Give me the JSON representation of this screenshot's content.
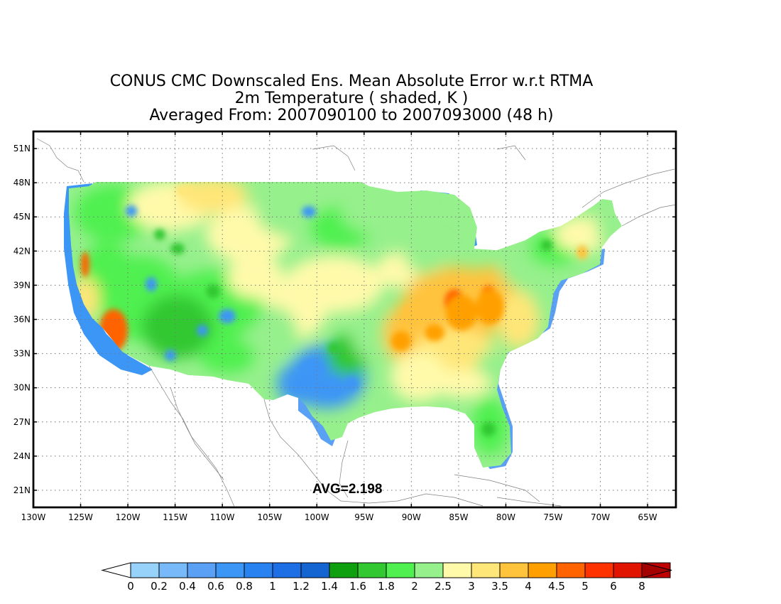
{
  "title": {
    "line1": "CONUS CMC Downscaled Ens. Mean Absolute Error w.r.t RTMA",
    "line2": "2m Temperature ( shaded, K )",
    "line3": "Averaged From: 2007090100 to 2007093000 (48 h)"
  },
  "map": {
    "region": "CONUS",
    "lon_range": [
      -130,
      -62
    ],
    "lat_range": [
      19.5,
      52.5
    ],
    "lon_labels": [
      "130W",
      "125W",
      "120W",
      "115W",
      "110W",
      "105W",
      "100W",
      "95W",
      "90W",
      "85W",
      "80W",
      "75W",
      "70W",
      "65W"
    ],
    "lat_labels": [
      "51N",
      "48N",
      "45N",
      "42N",
      "39N",
      "36N",
      "33N",
      "30N",
      "27N",
      "24N",
      "21N"
    ],
    "grid": "dotted",
    "avg_label": "AVG=2.198"
  },
  "colorbar": {
    "labels": [
      "0",
      "0.2",
      "0.4",
      "0.6",
      "0.8",
      "1",
      "1.2",
      "1.4",
      "1.6",
      "1.8",
      "2",
      "2.5",
      "3",
      "3.5",
      "4",
      "4.5",
      "5",
      "6",
      "8"
    ],
    "colors": [
      "#96d2fa",
      "#78b9fa",
      "#5aa0f5",
      "#3c96f5",
      "#2882f0",
      "#1e6ee6",
      "#1464d2",
      "#0fa00f",
      "#32c832",
      "#50f050",
      "#96f08c",
      "#fffaaa",
      "#ffe678",
      "#ffc33c",
      "#ffa000",
      "#ff6400",
      "#ff3200",
      "#e11400",
      "#c00000"
    ],
    "under_color": "#ffffff",
    "over_color": "#a50000"
  },
  "field_colors": {
    "coast_blue": "#3c96f5",
    "ocean_blue": "#5aa0f5",
    "green_dark": "#32c832",
    "green_mid": "#50f050",
    "green_light": "#96f08c",
    "yellow_light": "#fffaaa",
    "yellow": "#ffe678",
    "orange_light": "#ffc33c",
    "orange": "#ffa000",
    "red_orange": "#ff6400",
    "red": "#e11400"
  }
}
